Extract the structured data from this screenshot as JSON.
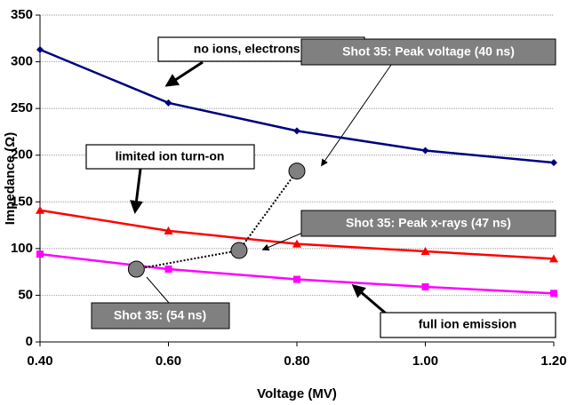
{
  "chart_data": {
    "type": "line",
    "x_label": "Voltage (MV)",
    "y_label": "Impedance (Ω)",
    "x": [
      0.4,
      0.6,
      0.8,
      1.0,
      1.2
    ],
    "xlim": [
      0.4,
      1.2
    ],
    "xticks": [
      {
        "value": 0.4,
        "label": "0.40"
      },
      {
        "value": 0.6,
        "label": "0.60"
      },
      {
        "value": 0.8,
        "label": "0.80"
      },
      {
        "value": 1.0,
        "label": "1.00"
      },
      {
        "value": 1.2,
        "label": "1.20"
      }
    ],
    "ylim": [
      0,
      350
    ],
    "yticks": [
      0,
      50,
      100,
      150,
      200,
      250,
      300,
      350
    ],
    "grid": true,
    "series": [
      {
        "name": "no ions, electrons only",
        "color": "#000080",
        "marker": "diamond",
        "values": [
          313,
          256,
          226,
          205,
          192
        ]
      },
      {
        "name": "limited ion turn-on",
        "color": "#ff0000",
        "marker": "triangle",
        "values": [
          141,
          119,
          105,
          97,
          89
        ]
      },
      {
        "name": "full ion emission",
        "color": "#ff00ff",
        "marker": "square",
        "values": [
          94,
          78,
          67,
          59,
          52
        ]
      }
    ],
    "shot": {
      "color": "#808080",
      "x": [
        0.8,
        0.71,
        0.55
      ],
      "values": [
        183,
        98,
        78
      ],
      "point_labels": [
        "Shot 35:  Peak voltage (40 ns)",
        "Shot 35: Peak x-rays (47 ns)",
        "Shot 35: (54 ns)"
      ]
    }
  }
}
